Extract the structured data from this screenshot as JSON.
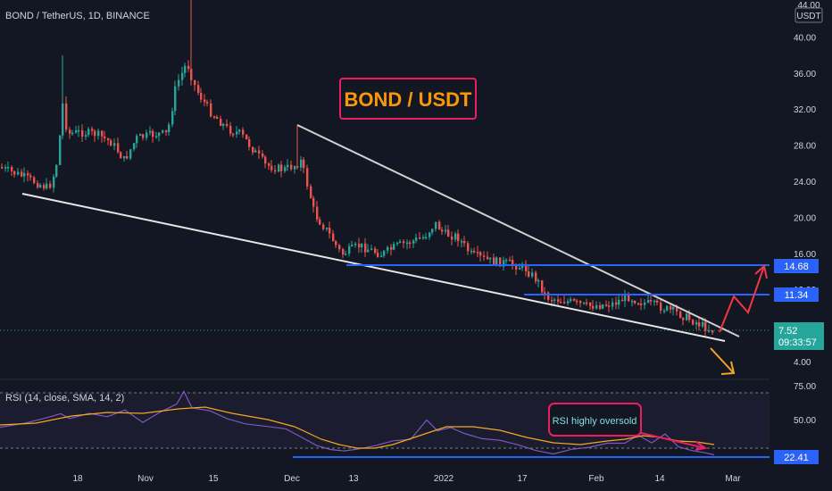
{
  "header": {
    "symbol_title": "BOND / TetherUS, 1D, BINANCE",
    "currency_badge": "USDT"
  },
  "colors": {
    "background": "#131722",
    "up": "#26a69a",
    "down": "#ef5350",
    "blue_line": "#2962ff",
    "trend_line": "#d9d9d9",
    "rsi_line": "#7e57c2",
    "rsi_ma": "#f5a623",
    "annotation_border": "#e91e63",
    "title_text": "#ff9800",
    "arrow_up": "#f23645",
    "arrow_down": "#f5a623"
  },
  "annotations": {
    "main_title": "BOND / USDT",
    "rsi_note": "RSI highly oversold"
  },
  "price_axis": {
    "ticks": [
      "44.00",
      "40.00",
      "36.00",
      "32.00",
      "28.00",
      "24.00",
      "20.00",
      "16.00",
      "12.00",
      "8.00",
      "4.00"
    ],
    "tick_values": [
      44,
      40,
      36,
      32,
      28,
      24,
      20,
      16,
      12,
      8,
      4
    ],
    "last_price": "7.52",
    "countdown": "09:33:57",
    "level_high": "14.68",
    "level_mid": "11.34"
  },
  "rsi_panel": {
    "label": "RSI (14, close, SMA, 14, 2)",
    "ticks": [
      "75.00",
      "50.00"
    ],
    "tick_values": [
      75,
      50
    ],
    "level_badge": "22.41"
  },
  "time_axis": {
    "labels": [
      "18",
      "Nov",
      "15",
      "Dec",
      "13",
      "2022",
      "17",
      "Feb",
      "14",
      "Mar"
    ]
  },
  "chart_data": {
    "type": "candlestick",
    "symbol": "BOND / TetherUS",
    "interval": "1D",
    "exchange": "BINANCE",
    "ylim": [
      3,
      44
    ],
    "horizontal_levels": [
      14.68,
      11.34
    ],
    "last_price": 7.52,
    "close_series_approx": [
      {
        "date": "2021-10-07",
        "close": 25.5
      },
      {
        "date": "2021-10-14",
        "close": 24.5
      },
      {
        "date": "2021-10-16",
        "close": 35.0
      },
      {
        "date": "2021-10-18",
        "close": 29.5
      },
      {
        "date": "2021-10-25",
        "close": 27.0
      },
      {
        "date": "2021-11-01",
        "close": 28.0
      },
      {
        "date": "2021-11-08",
        "close": 33.0
      },
      {
        "date": "2021-11-11",
        "close": 38.0
      },
      {
        "date": "2021-11-15",
        "close": 32.0
      },
      {
        "date": "2021-11-22",
        "close": 28.5
      },
      {
        "date": "2021-12-01",
        "close": 25.5
      },
      {
        "date": "2021-12-05",
        "close": 20.5
      },
      {
        "date": "2021-12-13",
        "close": 15.0
      },
      {
        "date": "2021-12-20",
        "close": 16.5
      },
      {
        "date": "2021-12-28",
        "close": 18.0
      },
      {
        "date": "2022-01-01",
        "close": 17.5
      },
      {
        "date": "2022-01-08",
        "close": 15.0
      },
      {
        "date": "2022-01-17",
        "close": 14.5
      },
      {
        "date": "2022-01-21",
        "close": 11.0
      },
      {
        "date": "2022-02-01",
        "close": 10.0
      },
      {
        "date": "2022-02-08",
        "close": 11.0
      },
      {
        "date": "2022-02-14",
        "close": 10.0
      },
      {
        "date": "2022-02-21",
        "close": 8.0
      },
      {
        "date": "2022-02-24",
        "close": 7.52
      }
    ],
    "rsi": {
      "period": 14,
      "smoothing": "SMA",
      "current": 22.41,
      "ylim": [
        20,
        75
      ]
    }
  }
}
